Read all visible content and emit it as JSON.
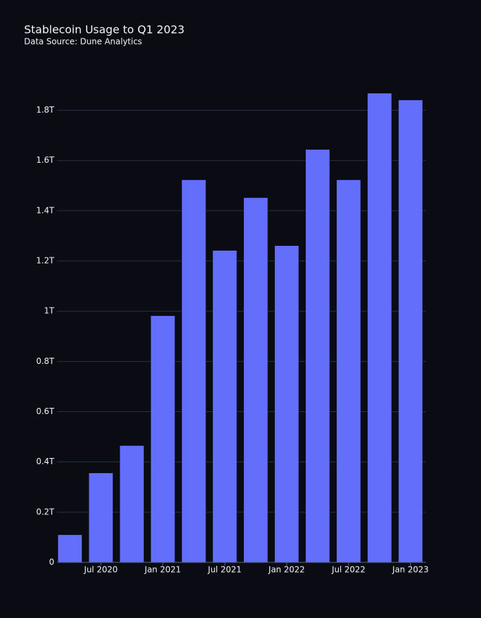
{
  "chart_data": {
    "type": "bar",
    "title": "Stablecoin Usage to Q1 2023",
    "subtitle": "Data Source: Dune Analytics",
    "x": [
      "2020-04",
      "2020-07",
      "2020-10",
      "2021-01",
      "2021-04",
      "2021-07",
      "2021-10",
      "2022-01",
      "2022-04",
      "2022-07",
      "2022-10",
      "2023-01"
    ],
    "values": [
      110000000000,
      356000000000,
      465000000000,
      982000000000,
      1523000000000,
      1242000000000,
      1452000000000,
      1261000000000,
      1644000000000,
      1523000000000,
      1868000000000,
      1841000000000
    ],
    "color": "#636efa",
    "xticks": [
      {
        "value": "2020-07",
        "label": "Jul 2020"
      },
      {
        "value": "2021-01",
        "label": "Jan 2021"
      },
      {
        "value": "2021-07",
        "label": "Jul 2021"
      },
      {
        "value": "2022-01",
        "label": "Jan 2022"
      },
      {
        "value": "2022-07",
        "label": "Jul 2022"
      },
      {
        "value": "2023-01",
        "label": "Jan 2023"
      }
    ],
    "ylim": [
      0,
      1900000000000
    ],
    "yticks": [
      0,
      {
        "value": 200000000000,
        "label": "0.2T"
      },
      {
        "value": 400000000000,
        "label": "0.4T"
      },
      {
        "value": 600000000000,
        "label": "0.6T"
      },
      {
        "value": 800000000000,
        "label": "0.8T"
      },
      {
        "value": 1000000000000,
        "label": "1T"
      },
      {
        "value": 1200000000000,
        "label": "1.2T"
      },
      {
        "value": 1400000000000,
        "label": "1.4T"
      },
      {
        "value": 1600000000000,
        "label": "1.6T"
      },
      {
        "value": 1800000000000,
        "label": "1.8T"
      }
    ],
    "grid": true
  }
}
